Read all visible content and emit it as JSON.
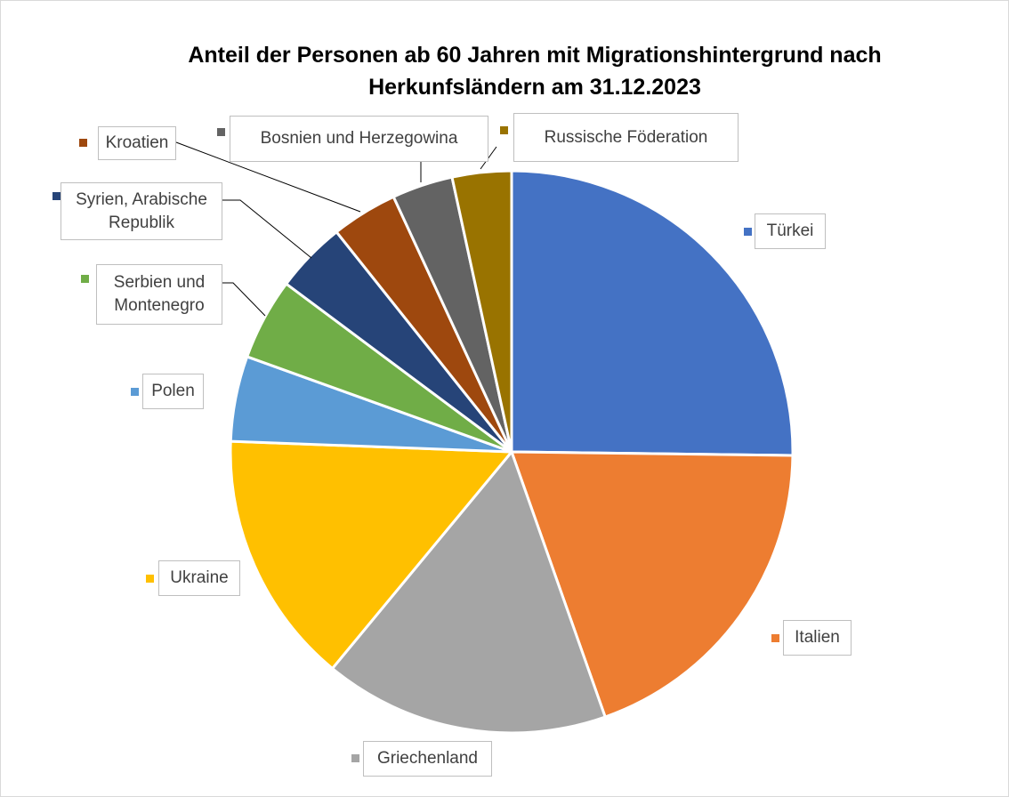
{
  "chart_data": {
    "type": "pie",
    "title": "Anteil der Personen ab 60 Jahren mit Migrationshintergrund nach Herkunfsländern am 31.12.2023",
    "categories": [
      "Türkei",
      "Italien",
      "Griechenland",
      "Ukraine",
      "Polen",
      "Serbien und Montenegro",
      "Syrien, Arabische Republik",
      "Kroatien",
      "Bosnien und Herzegowina",
      "Russische Föderation"
    ],
    "values": [
      25.2,
      19.4,
      16.4,
      14.6,
      4.9,
      4.7,
      4.1,
      3.8,
      3.5,
      3.4
    ],
    "colors": [
      "#4472c4",
      "#ed7d31",
      "#a5a5a5",
      "#ffc000",
      "#5b9bd5",
      "#70ad47",
      "#264478",
      "#9e480e",
      "#636363",
      "#997300"
    ]
  }
}
